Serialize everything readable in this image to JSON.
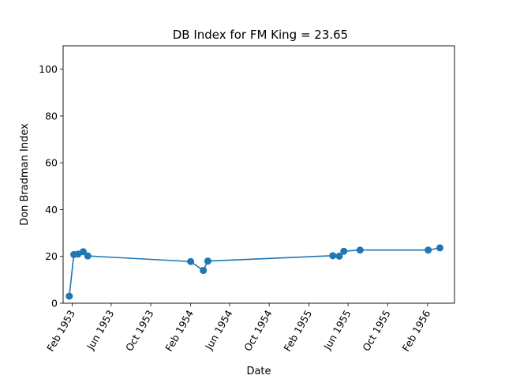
{
  "chart_data": {
    "type": "line",
    "title": "DB Index for FM King = 23.65",
    "xlabel": "Date",
    "ylabel": "Don Bradman Index",
    "ylim": [
      0,
      110
    ],
    "xlim": [
      "1953-01-04",
      "1956-04-24"
    ],
    "yticks": [
      0,
      20,
      40,
      60,
      80,
      100
    ],
    "xticks": [
      {
        "date": "1953-02-01",
        "label": "Feb 1953"
      },
      {
        "date": "1953-06-01",
        "label": "Jun 1953"
      },
      {
        "date": "1953-10-01",
        "label": "Oct 1953"
      },
      {
        "date": "1954-02-01",
        "label": "Feb 1954"
      },
      {
        "date": "1954-06-01",
        "label": "Jun 1954"
      },
      {
        "date": "1954-10-01",
        "label": "Oct 1954"
      },
      {
        "date": "1955-02-01",
        "label": "Feb 1955"
      },
      {
        "date": "1955-06-01",
        "label": "Jun 1955"
      },
      {
        "date": "1955-10-01",
        "label": "Oct 1955"
      },
      {
        "date": "1956-02-01",
        "label": "Feb 1956"
      }
    ],
    "grid": false,
    "series": [
      {
        "color": "#1f77b4",
        "points": [
          {
            "x": "1953-01-23",
            "y": 3.0
          },
          {
            "x": "1953-02-06",
            "y": 20.8
          },
          {
            "x": "1953-02-19",
            "y": 21.0
          },
          {
            "x": "1953-03-07",
            "y": 22.0
          },
          {
            "x": "1953-03-21",
            "y": 20.2
          },
          {
            "x": "1954-02-01",
            "y": 17.8
          },
          {
            "x": "1954-03-12",
            "y": 14.0
          },
          {
            "x": "1954-03-26",
            "y": 18.0
          },
          {
            "x": "1955-04-15",
            "y": 20.3
          },
          {
            "x": "1955-05-05",
            "y": 20.1
          },
          {
            "x": "1955-05-19",
            "y": 22.2
          },
          {
            "x": "1955-07-08",
            "y": 22.7
          },
          {
            "x": "1956-02-03",
            "y": 22.7
          },
          {
            "x": "1956-03-10",
            "y": 23.65
          }
        ]
      }
    ]
  }
}
